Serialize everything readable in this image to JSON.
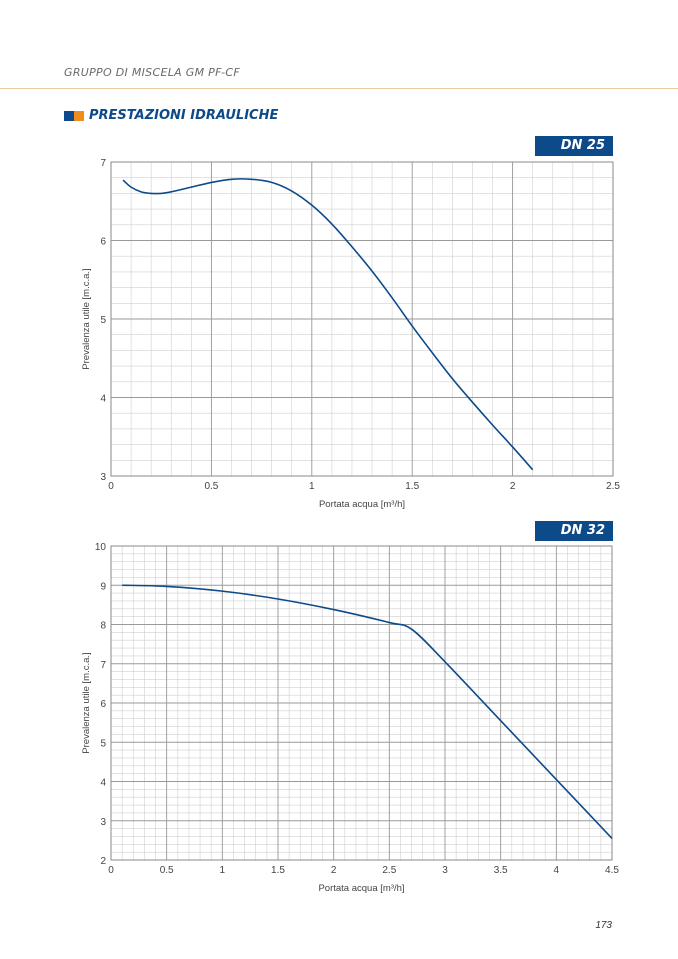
{
  "header": {
    "title": "GRUPPO DI MISCELA GM PF-CF"
  },
  "section": {
    "title": "PRESTAZIONI IDRAULICHE",
    "icon_colors": [
      "#0d4a8a",
      "#f08c1e"
    ]
  },
  "colors": {
    "line": "#0d4a8a",
    "badge": "#0d4a8a",
    "grid": "#d0d0d0",
    "grid_major": "#9a9a9a",
    "rule": "#e8c9a3"
  },
  "page_number": "173",
  "chart_data": [
    {
      "type": "line",
      "badge": "DN 25",
      "xlabel": "Portata acqua [m³/h]",
      "ylabel": "Prevalenza utile [m.c.a.]",
      "xlim": [
        0,
        2.5
      ],
      "ylim": [
        3,
        7
      ],
      "xticks": [
        "0",
        "0.5",
        "1",
        "1.5",
        "2",
        "2.5"
      ],
      "yticks": [
        "3",
        "4",
        "5",
        "6",
        "7"
      ],
      "grid": true,
      "series": [
        {
          "x": [
            0.06,
            0.1,
            0.15,
            0.2,
            0.25,
            0.3,
            0.4,
            0.5,
            0.6,
            0.7,
            0.8,
            0.9,
            1.0,
            1.1,
            1.2,
            1.3,
            1.4,
            1.5,
            1.6,
            1.7,
            1.8,
            1.9,
            2.0,
            2.1
          ],
          "y": [
            6.77,
            6.68,
            6.62,
            6.6,
            6.6,
            6.62,
            6.68,
            6.74,
            6.78,
            6.78,
            6.74,
            6.63,
            6.45,
            6.21,
            5.92,
            5.61,
            5.27,
            4.91,
            4.57,
            4.24,
            3.94,
            3.65,
            3.37,
            3.08
          ]
        }
      ]
    },
    {
      "type": "line",
      "badge": "DN 32",
      "xlabel": "Portata acqua [m³/h]",
      "ylabel": "Prevalenza utile [m.c.a.]",
      "xlim": [
        0,
        4.5
      ],
      "ylim": [
        2,
        10
      ],
      "xticks": [
        "0",
        "0.5",
        "1",
        "1.5",
        "2",
        "2.5",
        "3",
        "3.5",
        "4",
        "4.5"
      ],
      "yticks": [
        "2",
        "3",
        "4",
        "5",
        "6",
        "7",
        "8",
        "9",
        "10"
      ],
      "grid": true,
      "series": [
        {
          "x": [
            0.1,
            0.5,
            1.0,
            1.5,
            2.0,
            2.5,
            2.7,
            3.0,
            3.5,
            4.0,
            4.5
          ],
          "y": [
            9.0,
            8.97,
            8.85,
            8.65,
            8.38,
            8.05,
            7.88,
            7.05,
            5.55,
            4.05,
            2.55
          ]
        }
      ]
    }
  ]
}
